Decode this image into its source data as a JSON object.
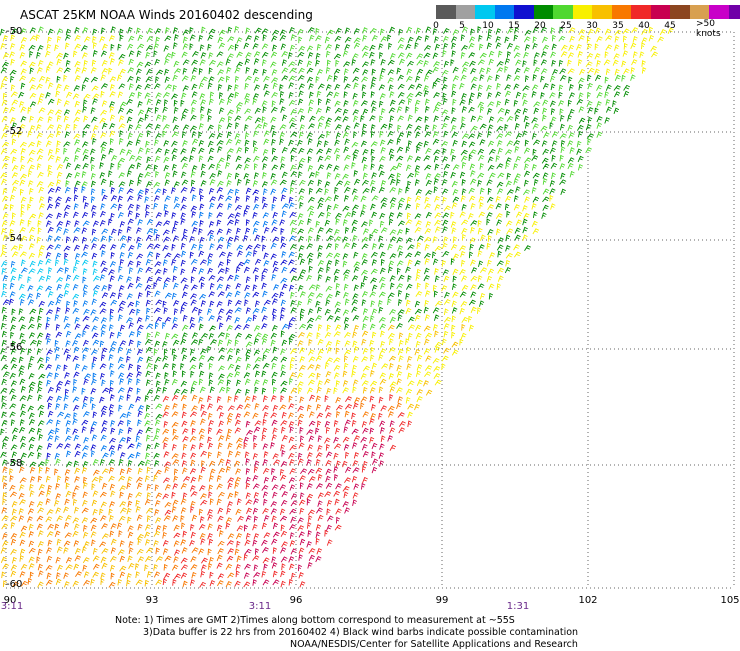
{
  "title": "ASCAT 25KM NOAA Winds 20160402 descending",
  "scale": {
    "colors": [
      "#5a5a5a",
      "#a0a0a0",
      "#00c8f0",
      "#0078f0",
      "#1010d0",
      "#008c00",
      "#50d830",
      "#f8f000",
      "#f8c000",
      "#f87800",
      "#f02828",
      "#c80050",
      "#8c4620",
      "#d8a050",
      "#c800c8",
      "#7000a8"
    ],
    "labels": [
      "0",
      "5",
      "10",
      "15",
      "20",
      "25",
      "30",
      "35",
      "40",
      "45"
    ],
    "overflow_label": ">50 knots"
  },
  "axes": {
    "lat_labels": [
      "-50",
      "-52",
      "-54",
      "-56",
      "-58",
      "-60"
    ],
    "lon_labels": [
      "90",
      "93",
      "96",
      "99",
      "102",
      "105"
    ],
    "time_labels": [
      "3:11",
      "3:11",
      "1:31"
    ]
  },
  "notes": {
    "line1": "Note: 1) Times are GMT 2)Times along bottom correspond to measurement at ~55S",
    "line2": "3)Data buffer is 22 hrs from 20160402 4) Black wind barbs indicate possible contamination",
    "line3": "NOAA/NESDIS/Center for Satellite Applications and Research"
  }
}
